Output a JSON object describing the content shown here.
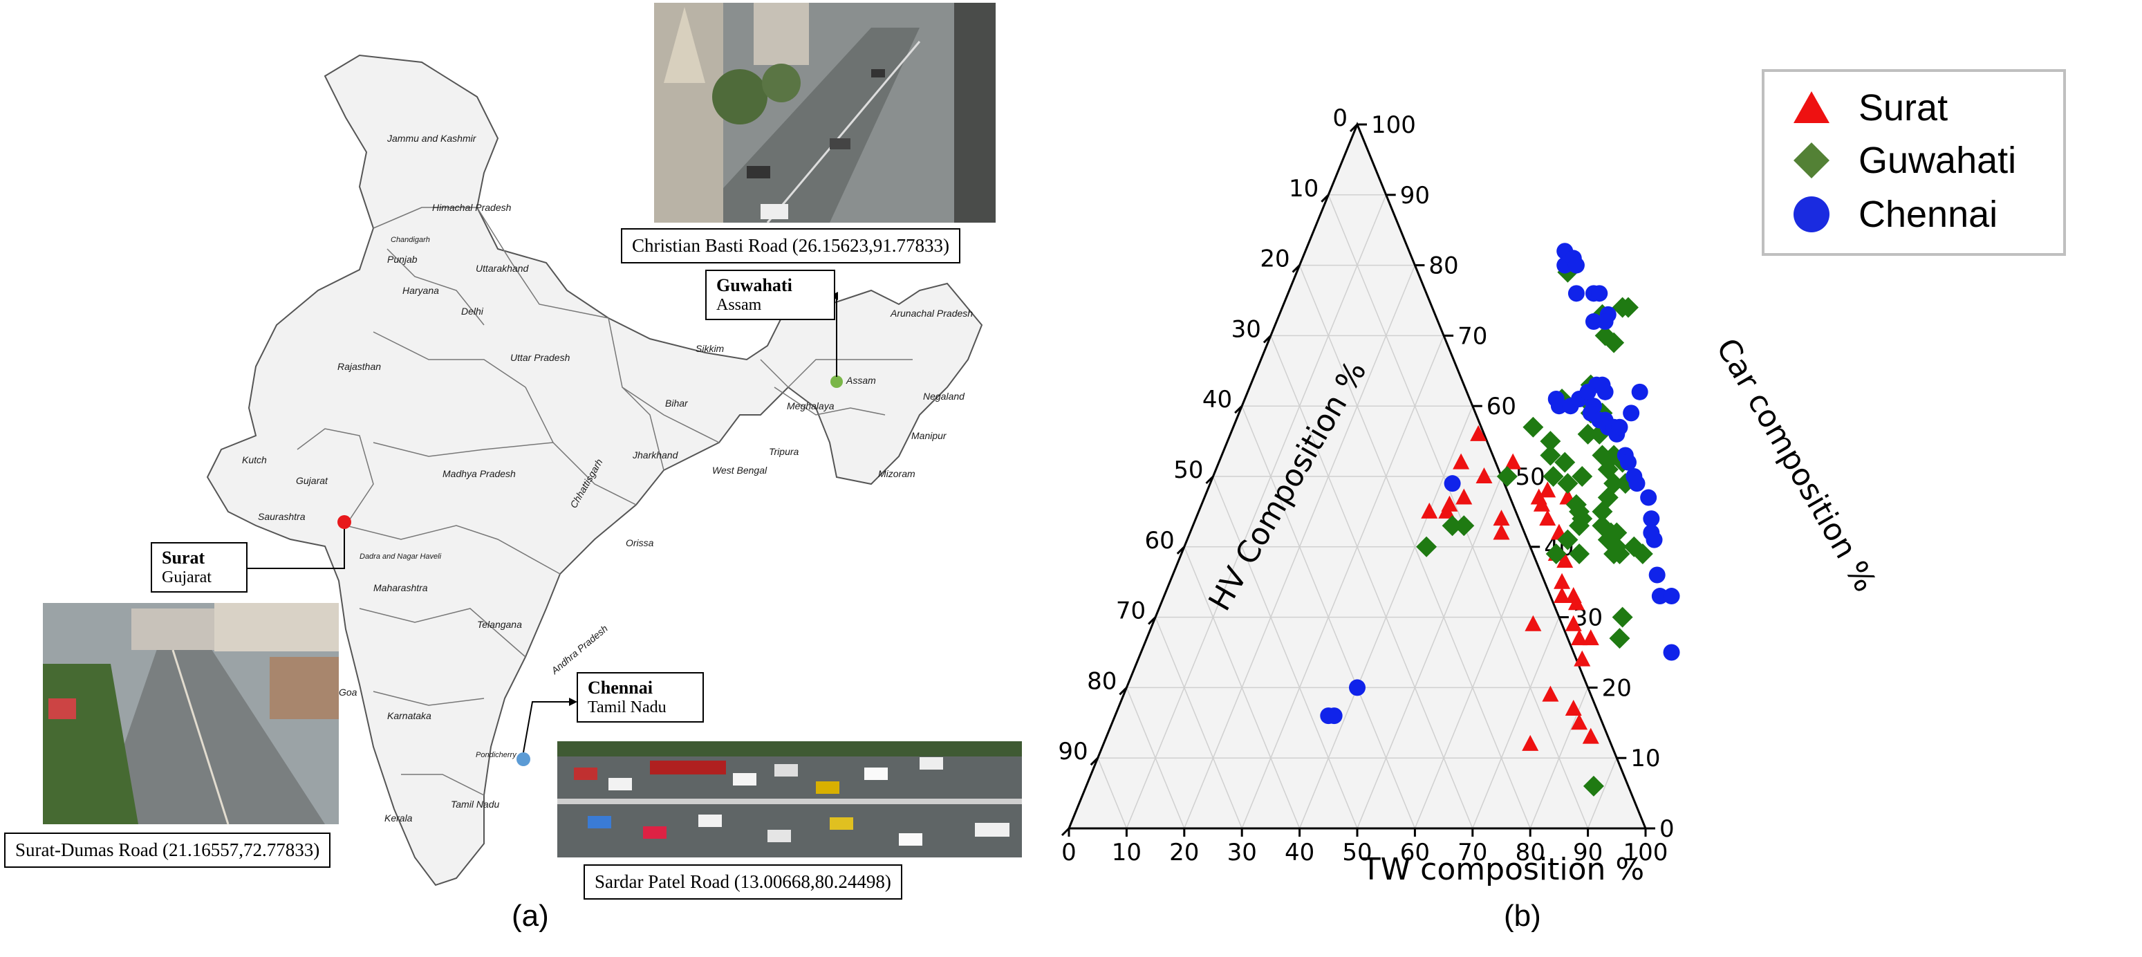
{
  "panel_a": {
    "label": "(a)",
    "states": [
      "Jammu and Kashmir",
      "Himachal Pradesh",
      "Chandigarh",
      "Punjab",
      "Uttarakhand",
      "Haryana",
      "Delhi",
      "Rajasthan",
      "Uttar Pradesh",
      "Sikkim",
      "Arunachal Pradesh",
      "Assam",
      "Negaland",
      "Meghalaya",
      "Bihar",
      "Manipur",
      "Tripura",
      "Mizoram",
      "Jharkhand",
      "West Bengal",
      "Kutch",
      "Gujarat",
      "Saurashtra",
      "Madhya Pradesh",
      "Chhattisgarh",
      "Orissa",
      "Dadra and Nagar Haveli",
      "Maharashtra",
      "Telangana",
      "Andhra Pradesh",
      "Goa",
      "Karnataka",
      "Pondicherry",
      "Tamil Nadu",
      "Kerala"
    ],
    "callouts": {
      "guwahati": {
        "city": "Guwahati",
        "state": "Assam",
        "road": "Christian Basti Road (26.15623,91.77833)"
      },
      "surat": {
        "city": "Surat",
        "state": "Gujarat",
        "road": "Surat-Dumas Road (21.16557,72.77833)"
      },
      "chennai": {
        "city": "Chennai",
        "state": "Tamil Nadu",
        "road": "Sardar Patel Road (13.00668,80.24498)"
      }
    },
    "marker_colors": {
      "surat": "#e8191c",
      "guwahati": "#7ab648",
      "chennai": "#5b9bd5"
    }
  },
  "panel_b": {
    "label": "(b)",
    "legend": [
      {
        "name": "Surat",
        "shape": "triangle-icon",
        "color": "#ee1111"
      },
      {
        "name": "Guwahati",
        "shape": "diamond-icon",
        "color": "#2e7d32"
      },
      {
        "name": "Chennai",
        "shape": "circle-icon",
        "color": "#1a2be0"
      }
    ]
  },
  "chart_data": {
    "type": "scatter",
    "subtype": "ternary",
    "axes": {
      "bottom": {
        "label": "TW composition %",
        "ticks": [
          0,
          10,
          20,
          30,
          40,
          50,
          60,
          70,
          80,
          90,
          100
        ]
      },
      "left": {
        "label": "HV Composition %",
        "ticks": [
          0,
          10,
          20,
          30,
          40,
          50,
          60,
          70,
          80,
          90,
          100
        ]
      },
      "right": {
        "label": "Car composition %",
        "ticks": [
          0,
          10,
          20,
          30,
          40,
          50,
          60,
          70,
          80,
          90,
          100
        ]
      }
    },
    "grid": true,
    "legend_position": "top-right",
    "series": [
      {
        "name": "Surat",
        "marker": "triangle",
        "color": "#ee1111",
        "points": [
          [
            42,
            52
          ],
          [
            43,
            45
          ],
          [
            40,
            45
          ],
          [
            45,
            47
          ],
          [
            43,
            46
          ],
          [
            47,
            50
          ],
          [
            43,
            56
          ],
          [
            53,
            44
          ],
          [
            54,
            42
          ],
          [
            58,
            47
          ],
          [
            59,
            48
          ],
          [
            63,
            47
          ],
          [
            61,
            44
          ],
          [
            64,
            42
          ],
          [
            65,
            39
          ],
          [
            67,
            38
          ],
          [
            68,
            35
          ],
          [
            69,
            33
          ],
          [
            71,
            33
          ],
          [
            72,
            32
          ],
          [
            73,
            29
          ],
          [
            75,
            27
          ],
          [
            77,
            27
          ],
          [
            77,
            24
          ],
          [
            66,
            29
          ],
          [
            74,
            19
          ],
          [
            79,
            17
          ],
          [
            84,
            13
          ],
          [
            81,
            15
          ],
          [
            74,
            12
          ],
          [
            59,
            46
          ],
          [
            51,
            52
          ]
        ]
      },
      {
        "name": "Guwahati",
        "marker": "diamond",
        "color": "#1f7a12",
        "points": [
          [
            47,
            79
          ],
          [
            56,
            73
          ],
          [
            59,
            74
          ],
          [
            60,
            74
          ],
          [
            58,
            70
          ],
          [
            60,
            69
          ],
          [
            59,
            63
          ],
          [
            55,
            61
          ],
          [
            59,
            61
          ],
          [
            61,
            59
          ],
          [
            62,
            59
          ],
          [
            63,
            59
          ],
          [
            62,
            56
          ],
          [
            64,
            56
          ],
          [
            66,
            53
          ],
          [
            68,
            53
          ],
          [
            68,
            51
          ],
          [
            70,
            52
          ],
          [
            70,
            49
          ],
          [
            72,
            49
          ],
          [
            70,
            47
          ],
          [
            70,
            45
          ],
          [
            71,
            43
          ],
          [
            73,
            42
          ],
          [
            73,
            41
          ],
          [
            74,
            42
          ],
          [
            75,
            39
          ],
          [
            76,
            39
          ],
          [
            75,
            40
          ],
          [
            78,
            40
          ],
          [
            69,
            39
          ],
          [
            80,
            39
          ],
          [
            81,
            30
          ],
          [
            82,
            27
          ],
          [
            88,
            6
          ],
          [
            42,
            40
          ],
          [
            45,
            43
          ],
          [
            47,
            43
          ],
          [
            51,
            50
          ],
          [
            52,
            57
          ],
          [
            56,
            55
          ],
          [
            57,
            53
          ],
          [
            59,
            50
          ],
          [
            60,
            52
          ],
          [
            64,
            50
          ],
          [
            62,
            49
          ],
          [
            65,
            46
          ],
          [
            66,
            45
          ],
          [
            67,
            44
          ],
          [
            67,
            43
          ],
          [
            66,
            41
          ],
          [
            65,
            39
          ]
        ]
      },
      {
        "name": "Chennai",
        "marker": "circle",
        "color": "#1023ea",
        "points": [
          [
            40,
            20
          ],
          [
            37,
            16
          ],
          [
            38,
            16
          ],
          [
            45,
            82
          ],
          [
            46,
            80
          ],
          [
            47,
            81
          ],
          [
            48,
            80
          ],
          [
            50,
            76
          ],
          [
            53,
            76
          ],
          [
            54,
            76
          ],
          [
            55,
            72
          ],
          [
            57,
            73
          ],
          [
            57,
            72
          ],
          [
            54,
            61
          ],
          [
            55,
            60
          ],
          [
            57,
            60
          ],
          [
            58,
            61
          ],
          [
            59,
            62
          ],
          [
            60,
            63
          ],
          [
            61,
            60
          ],
          [
            61,
            59
          ],
          [
            63,
            58
          ],
          [
            64,
            58
          ],
          [
            65,
            57
          ],
          [
            66,
            57
          ],
          [
            67,
            56
          ],
          [
            70,
            53
          ],
          [
            71,
            52
          ],
          [
            73,
            50
          ],
          [
            74,
            49
          ],
          [
            77,
            47
          ],
          [
            79,
            44
          ],
          [
            80,
            42
          ],
          [
            81,
            41
          ],
          [
            84,
            36
          ],
          [
            86,
            33
          ],
          [
            88,
            33
          ],
          [
            92,
            25
          ],
          [
            42,
            49
          ],
          [
            62,
            62
          ],
          [
            61,
            63
          ],
          [
            68,
            62
          ],
          [
            68,
            59
          ],
          [
            67,
            57
          ]
        ]
      }
    ]
  }
}
